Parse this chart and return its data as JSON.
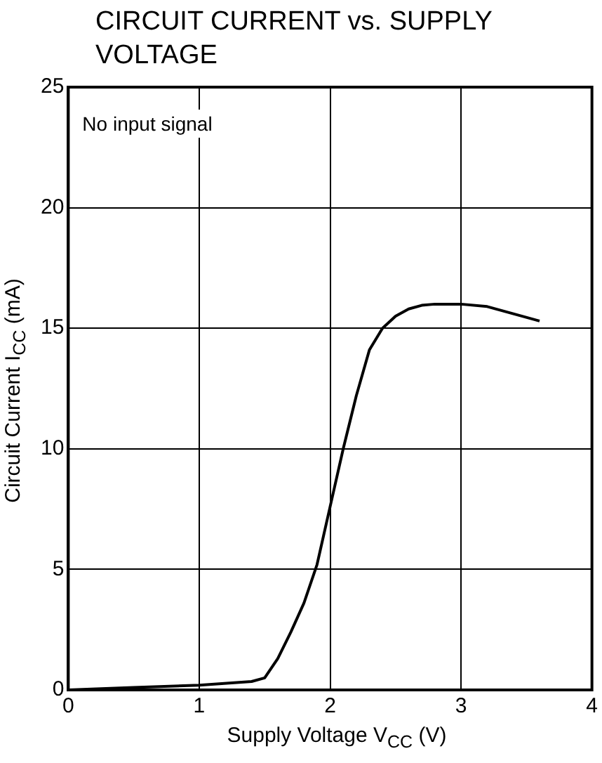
{
  "chart_data": {
    "type": "line",
    "title": "CIRCUIT CURRENT vs. SUPPLY VOLTAGE",
    "xlabel": "Supply Voltage  V$_{CC}$ (V)",
    "ylabel": "Circuit Current  I$_{CC}$ (mA)",
    "annotations": [
      "No input signal"
    ],
    "x": [
      0,
      0.5,
      1,
      1.4,
      1.5,
      1.6,
      1.7,
      1.8,
      1.9,
      2,
      2.1,
      2.2,
      2.3,
      2.4,
      2.5,
      2.6,
      2.7,
      2.8,
      3,
      3.2,
      3.4,
      3.6
    ],
    "series": [
      {
        "color": "#000000",
        "values": [
          0,
          0.1,
          0.2,
          0.35,
          0.5,
          1.3,
          2.4,
          3.6,
          5.2,
          7.6,
          10,
          12.2,
          14.1,
          15,
          15.5,
          15.8,
          15.95,
          16,
          16,
          15.9,
          15.6,
          15.3
        ]
      }
    ],
    "xlim": [
      0,
      4
    ],
    "xticks": [
      0,
      1,
      2,
      3,
      4
    ],
    "ylim": [
      0,
      25
    ],
    "yticks": [
      0,
      5,
      10,
      15,
      20,
      25
    ],
    "grid": true,
    "legend": false,
    "marker": "none",
    "line_style": "solid"
  }
}
